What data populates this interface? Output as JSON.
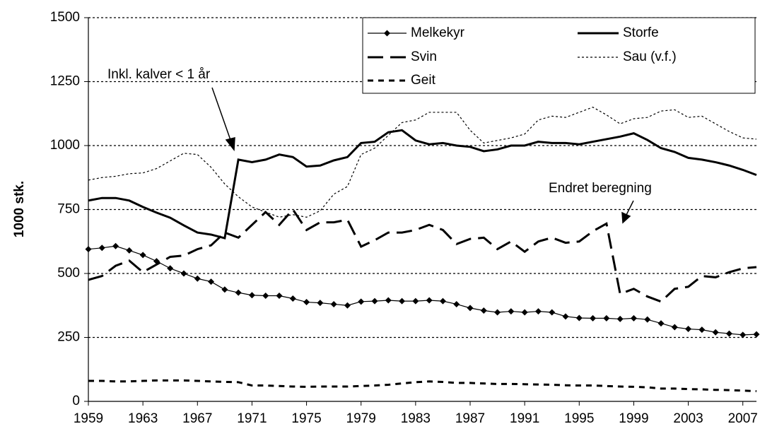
{
  "chart_data": {
    "type": "line",
    "ylabel": "1000 stk.",
    "x": [
      1959,
      1960,
      1961,
      1962,
      1963,
      1964,
      1965,
      1966,
      1967,
      1968,
      1969,
      1970,
      1971,
      1972,
      1973,
      1974,
      1975,
      1976,
      1977,
      1978,
      1979,
      1980,
      1981,
      1982,
      1983,
      1984,
      1985,
      1986,
      1987,
      1988,
      1989,
      1990,
      1991,
      1992,
      1993,
      1994,
      1995,
      1996,
      1997,
      1998,
      1999,
      2000,
      2001,
      2002,
      2003,
      2004,
      2005,
      2006,
      2007,
      2008
    ],
    "xlim": [
      1959,
      2008
    ],
    "xticks": [
      1959,
      1963,
      1967,
      1971,
      1975,
      1979,
      1983,
      1987,
      1991,
      1995,
      1999,
      2003,
      2007
    ],
    "ylim": [
      0,
      1500
    ],
    "yticks": [
      0,
      250,
      500,
      750,
      1000,
      1250,
      1500
    ],
    "grid": true,
    "legend": "upper right",
    "series": [
      {
        "name": "Melkekyr",
        "color": "#000000",
        "width": 1.2,
        "dash": "none",
        "marker": "diamond",
        "values": [
          595,
          600,
          607,
          590,
          572,
          548,
          520,
          500,
          480,
          468,
          437,
          425,
          415,
          413,
          413,
          402,
          388,
          385,
          380,
          375,
          390,
          392,
          395,
          392,
          392,
          395,
          392,
          380,
          365,
          355,
          348,
          352,
          348,
          352,
          348,
          332,
          326,
          325,
          325,
          322,
          325,
          320,
          305,
          290,
          283,
          280,
          270,
          265,
          260,
          262
        ]
      },
      {
        "name": "Storfe",
        "color": "#000000",
        "width": 3,
        "dash": "none",
        "values": [
          785,
          795,
          795,
          785,
          760,
          738,
          718,
          688,
          660,
          652,
          638,
          945,
          935,
          945,
          965,
          955,
          918,
          922,
          942,
          955,
          1010,
          1015,
          1052,
          1060,
          1020,
          1005,
          1010,
          1000,
          995,
          978,
          985,
          1000,
          1000,
          1015,
          1010,
          1010,
          1005,
          1015,
          1025,
          1035,
          1048,
          1022,
          990,
          975,
          952,
          945,
          935,
          922,
          905,
          885
        ]
      },
      {
        "name": "Svin",
        "color": "#000000",
        "width": 3,
        "dash": "22 10",
        "values": [
          475,
          490,
          530,
          550,
          505,
          535,
          565,
          570,
          595,
          610,
          660,
          640,
          690,
          740,
          690,
          750,
          670,
          700,
          700,
          710,
          605,
          630,
          660,
          660,
          670,
          690,
          670,
          615,
          635,
          640,
          595,
          625,
          585,
          625,
          640,
          620,
          625,
          665,
          695,
          420,
          440,
          410,
          390,
          440,
          448,
          490,
          485,
          505,
          520,
          525
        ]
      },
      {
        "name": "Sau (v.f.)",
        "color": "#000000",
        "width": 1.2,
        "dash": "3 3",
        "values": [
          865,
          875,
          880,
          890,
          893,
          910,
          940,
          970,
          965,
          915,
          850,
          800,
          760,
          740,
          720,
          730,
          720,
          745,
          810,
          840,
          965,
          990,
          1040,
          1090,
          1100,
          1130,
          1130,
          1130,
          1060,
          1010,
          1020,
          1030,
          1045,
          1100,
          1115,
          1110,
          1130,
          1150,
          1120,
          1085,
          1105,
          1110,
          1135,
          1140,
          1110,
          1115,
          1085,
          1055,
          1030,
          1025
        ]
      },
      {
        "name": "Geit",
        "color": "#000000",
        "width": 3,
        "dash": "8 7",
        "values": [
          80,
          80,
          78,
          78,
          80,
          82,
          82,
          82,
          80,
          78,
          76,
          75,
          62,
          62,
          60,
          58,
          57,
          58,
          58,
          58,
          60,
          62,
          65,
          70,
          75,
          78,
          76,
          72,
          72,
          70,
          68,
          68,
          67,
          66,
          65,
          63,
          62,
          62,
          60,
          58,
          57,
          55,
          50,
          50,
          48,
          47,
          45,
          44,
          42,
          40
        ]
      }
    ],
    "annotations": [
      {
        "text": "Inkl. kalver < 1 år"
      },
      {
        "text": "Endret beregning"
      }
    ]
  }
}
